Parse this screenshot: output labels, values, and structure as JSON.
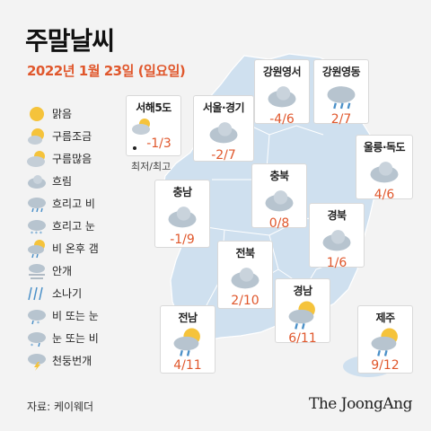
{
  "title": "주말날씨",
  "date": "2022년 1월 23일 (일요일)",
  "legend": [
    {
      "label": "맑음",
      "icon": "sun-icon"
    },
    {
      "label": "구름조금",
      "icon": "sun-cloud-small-icon"
    },
    {
      "label": "구름많음",
      "icon": "sun-cloud-large-icon"
    },
    {
      "label": "흐림",
      "icon": "cloud-icon"
    },
    {
      "label": "흐리고 비",
      "icon": "cloud-rain-icon"
    },
    {
      "label": "흐리고 눈",
      "icon": "cloud-snow-icon"
    },
    {
      "label": "비 온후 갬",
      "icon": "rain-then-clear-icon"
    },
    {
      "label": "안개",
      "icon": "fog-icon"
    },
    {
      "label": "소나기",
      "icon": "shower-icon"
    },
    {
      "label": "비 또는 눈",
      "icon": "rain-or-snow-icon"
    },
    {
      "label": "눈 또는 비",
      "icon": "snow-or-rain-icon"
    },
    {
      "label": "천둥번개",
      "icon": "thunder-icon"
    }
  ],
  "regions": [
    {
      "name": "서해5도",
      "temp": "-1/3",
      "icon": "sun-cloud-large-icon"
    },
    {
      "name": "서울·경기",
      "temp": "-2/7",
      "icon": "cloud-icon"
    },
    {
      "name": "강원영서",
      "temp": "-4/6",
      "icon": "cloud-icon"
    },
    {
      "name": "강원영동",
      "temp": "2/7",
      "icon": "cloud-rain-icon"
    },
    {
      "name": "울릉·독도",
      "temp": "4/6",
      "icon": "cloud-icon"
    },
    {
      "name": "충북",
      "temp": "0/8",
      "icon": "cloud-icon"
    },
    {
      "name": "충남",
      "temp": "-1/9",
      "icon": "cloud-icon"
    },
    {
      "name": "경북",
      "temp": "1/6",
      "icon": "cloud-icon"
    },
    {
      "name": "전북",
      "temp": "2/10",
      "icon": "cloud-icon"
    },
    {
      "name": "경남",
      "temp": "6/11",
      "icon": "rain-then-clear-icon"
    },
    {
      "name": "전남",
      "temp": "4/11",
      "icon": "rain-then-clear-icon"
    },
    {
      "name": "제주",
      "temp": "9/12",
      "icon": "rain-then-clear-icon"
    }
  ],
  "minmax_note": "최저/최고",
  "source": "자료: 케이웨더",
  "brand": "The JoongAng",
  "colors": {
    "accent": "#e0572c",
    "map": "#cfe0ef",
    "sun": "#f5c33b",
    "cloud": "#b7c4cf",
    "rain": "#4a90c8"
  }
}
